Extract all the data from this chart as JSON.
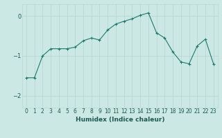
{
  "x": [
    0,
    1,
    2,
    3,
    4,
    5,
    6,
    7,
    8,
    9,
    10,
    11,
    12,
    13,
    14,
    15,
    16,
    17,
    18,
    19,
    20,
    21,
    22,
    23
  ],
  "y": [
    -1.55,
    -1.55,
    -1.0,
    -0.82,
    -0.82,
    -0.82,
    -0.78,
    -0.62,
    -0.55,
    -0.6,
    -0.35,
    -0.2,
    -0.13,
    -0.07,
    0.02,
    0.08,
    -0.42,
    -0.55,
    -0.9,
    -1.15,
    -1.2,
    -0.75,
    -0.58,
    -1.2
  ],
  "xlabel": "Humidex (Indice chaleur)",
  "line_color": "#1a7a6a",
  "marker": "+",
  "bg_color": "#cce8e4",
  "grid_color": "#b8d8d4",
  "text_color": "#1a5a50",
  "ylim": [
    -2.3,
    0.3
  ],
  "xlim": [
    -0.5,
    23.5
  ],
  "yticks": [
    -2,
    -1,
    0
  ],
  "xticks": [
    0,
    1,
    2,
    3,
    4,
    5,
    6,
    7,
    8,
    9,
    10,
    11,
    12,
    13,
    14,
    15,
    16,
    17,
    18,
    19,
    20,
    21,
    22,
    23
  ],
  "xtick_labels": [
    "0",
    "1",
    "2",
    "3",
    "4",
    "5",
    "6",
    "7",
    "8",
    "9",
    "10",
    "11",
    "12",
    "13",
    "14",
    "15",
    "16",
    "17",
    "18",
    "19",
    "20",
    "21",
    "22",
    "23"
  ]
}
